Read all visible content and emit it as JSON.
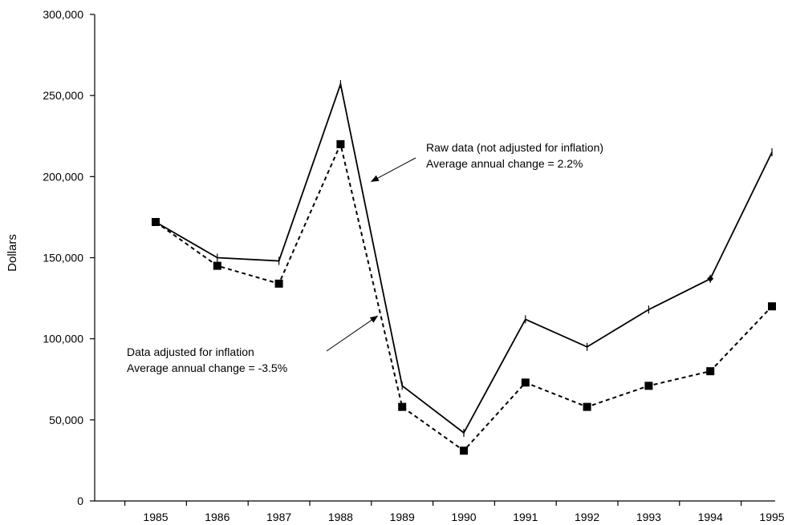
{
  "chart_data": {
    "type": "line",
    "ylabel": "Dollars",
    "xlabel": "",
    "x": [
      "1985",
      "1986",
      "1987",
      "1988",
      "1989",
      "1990",
      "1991",
      "1992",
      "1993",
      "1994",
      "1995"
    ],
    "ylim": [
      0,
      300000
    ],
    "yticks": [
      0,
      50000,
      100000,
      150000,
      200000,
      250000,
      300000
    ],
    "ytick_labels": [
      "0",
      "50,000",
      "100,000",
      "150,000",
      "200,000",
      "250,000",
      "300,000"
    ],
    "grid": false,
    "series": [
      {
        "key": "raw",
        "style": "solid",
        "marker": "tick",
        "color": "#000000",
        "values": [
          172000,
          150000,
          148000,
          257000,
          71000,
          42000,
          112000,
          95000,
          118000,
          137000,
          215000
        ]
      },
      {
        "key": "adjusted",
        "style": "dashed",
        "marker": "square",
        "color": "#000000",
        "values": [
          172000,
          145000,
          134000,
          220000,
          58000,
          31000,
          73000,
          58000,
          71000,
          80000,
          120000
        ]
      }
    ],
    "annotations": [
      {
        "key": "raw_note",
        "lines": [
          "Raw data (not adjusted for inflation)",
          "Average annual change = 2.2%"
        ],
        "target_year": 1988.5,
        "target_value": 197000
      },
      {
        "key": "adj_note",
        "lines": [
          "Data adjusted for inflation",
          "Average annual change = -3.5%"
        ],
        "target_year": 1988.6,
        "target_value": 114000
      }
    ]
  }
}
